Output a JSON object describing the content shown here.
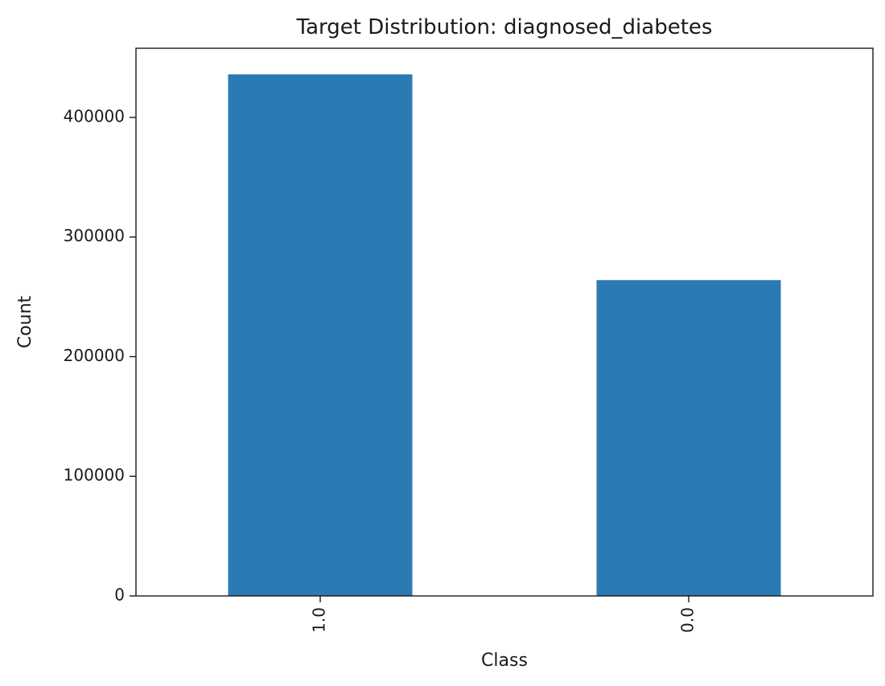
{
  "chart_data": {
    "type": "bar",
    "title": "Target Distribution: diagnosed_diabetes",
    "xlabel": "Class",
    "ylabel": "Count",
    "categories": [
      "1.0",
      "0.0"
    ],
    "values": [
      436000,
      264000
    ],
    "ylim": [
      0,
      457800
    ],
    "yticks": [
      0,
      100000,
      200000,
      300000,
      400000
    ],
    "ytick_labels": [
      "0",
      "100000",
      "200000",
      "300000",
      "400000"
    ],
    "xtick_rotation_deg": -90,
    "grid": false,
    "legend": "none",
    "bar_color": "#2a7ab3"
  }
}
